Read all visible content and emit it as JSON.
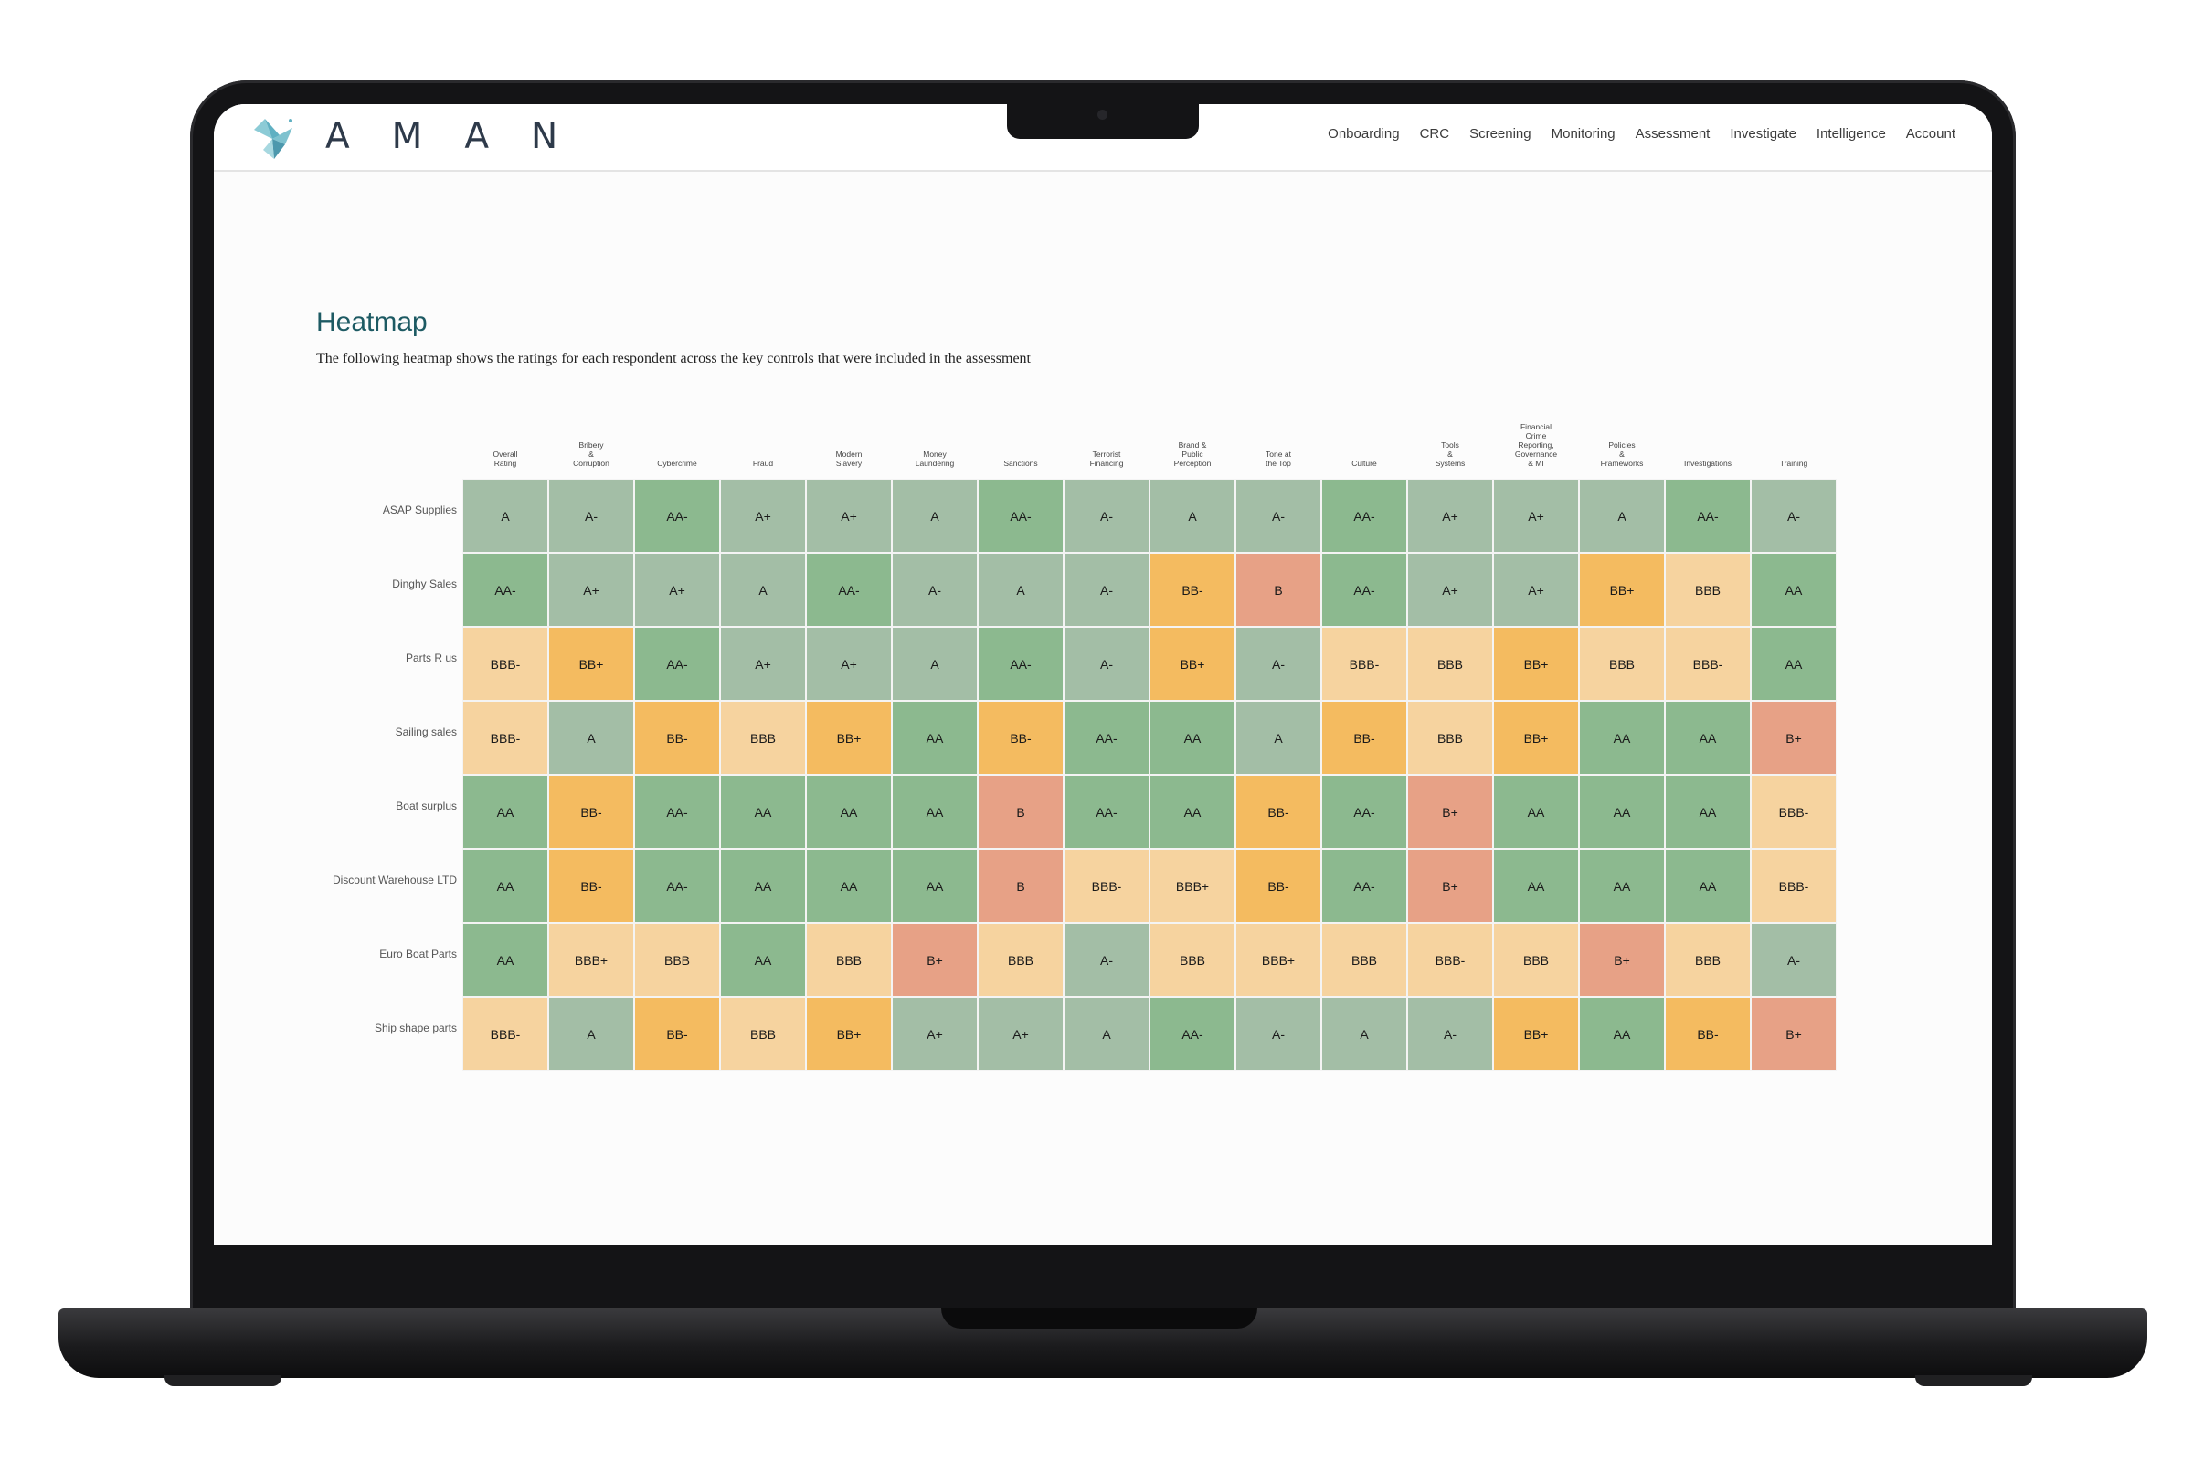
{
  "app": {
    "brand": "AMAN",
    "logo_icon": "dove-icon",
    "nav": [
      "Onboarding",
      "CRC",
      "Screening",
      "Monitoring",
      "Assessment",
      "Investigate",
      "Intelligence",
      "Account"
    ]
  },
  "page": {
    "title": "Heatmap",
    "subtitle": "The following heatmap shows the ratings for each respondent across the key controls that were included in the  assessment"
  },
  "colors": {
    "AA": "#8cb98f",
    "AA-": "#8cb98f",
    "A+": "#a3bea6",
    "A": "#a3bea6",
    "A-": "#a3bea6",
    "BBB+": "#f6d39f",
    "BBB": "#f6d39f",
    "BBB-": "#f6d39f",
    "BB+": "#f4bb60",
    "BB-": "#f4bb60",
    "B+": "#e7a186",
    "B": "#e7a186"
  },
  "chart_data": {
    "type": "heatmap",
    "columns": [
      "Overall\nRating",
      "Bribery\n&\nCorruption",
      "Cybercrime",
      "Fraud",
      "Modern\nSlavery",
      "Money\nLaundering",
      "Sanctions",
      "Terrorist\nFinancing",
      "Brand &\nPublic\nPerception",
      "Tone at\nthe Top",
      "Culture",
      "Tools\n&\nSystems",
      "Financial\nCrime\nReporting,\nGovernance\n& MI",
      "Policies\n&\nFrameworks",
      "Investigations",
      "Training"
    ],
    "rows": [
      {
        "name": "ASAP Supplies",
        "values": [
          "A",
          "A-",
          "AA-",
          "A+",
          "A+",
          "A",
          "AA-",
          "A-",
          "A",
          "A-",
          "AA-",
          "A+",
          "A+",
          "A",
          "AA-",
          "A-"
        ]
      },
      {
        "name": "Dinghy Sales",
        "values": [
          "AA-",
          "A+",
          "A+",
          "A",
          "AA-",
          "A-",
          "A",
          "A-",
          "BB-",
          "B",
          "AA-",
          "A+",
          "A+",
          "BB+",
          "BBB",
          "AA"
        ]
      },
      {
        "name": "Parts R us",
        "values": [
          "BBB-",
          "BB+",
          "AA-",
          "A+",
          "A+",
          "A",
          "AA-",
          "A-",
          "BB+",
          "A-",
          "BBB-",
          "BBB",
          "BB+",
          "BBB",
          "BBB-",
          "AA"
        ]
      },
      {
        "name": "Sailing sales",
        "values": [
          "BBB-",
          "A",
          "BB-",
          "BBB",
          "BB+",
          "AA",
          "BB-",
          "AA-",
          "AA",
          "A",
          "BB-",
          "BBB",
          "BB+",
          "AA",
          "AA",
          "B+"
        ]
      },
      {
        "name": "Boat surplus",
        "values": [
          "AA",
          "BB-",
          "AA-",
          "AA",
          "AA",
          "AA",
          "B",
          "AA-",
          "AA",
          "BB-",
          "AA-",
          "B+",
          "AA",
          "AA",
          "AA",
          "BBB-"
        ]
      },
      {
        "name": "Discount Warehouse LTD",
        "values": [
          "AA",
          "BB-",
          "AA-",
          "AA",
          "AA",
          "AA",
          "B",
          "BBB-",
          "BBB+",
          "BB-",
          "AA-",
          "B+",
          "AA",
          "AA",
          "AA",
          "BBB-"
        ]
      },
      {
        "name": "Euro Boat Parts",
        "values": [
          "AA",
          "BBB+",
          "BBB",
          "AA",
          "BBB",
          "B+",
          "BBB",
          "A-",
          "BBB",
          "BBB+",
          "BBB",
          "BBB-",
          "BBB",
          "B+",
          "BBB",
          "A-"
        ]
      },
      {
        "name": "Ship shape parts",
        "values": [
          "BBB-",
          "A",
          "BB-",
          "BBB",
          "BB+",
          "A+",
          "A+",
          "A",
          "AA-",
          "A-",
          "A",
          "A-",
          "BB+",
          "AA",
          "BB-",
          "B+"
        ]
      }
    ]
  }
}
